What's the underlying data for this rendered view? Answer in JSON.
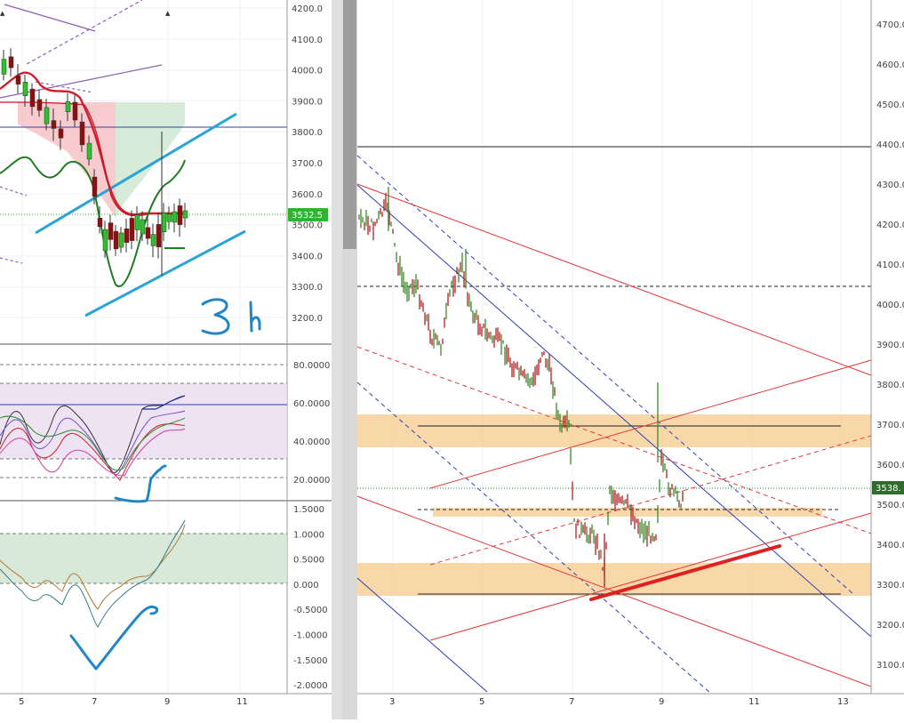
{
  "left_panel": {
    "price_axis": [
      "4200.0",
      "4100.0",
      "4000.0",
      "3900.0",
      "3800.0",
      "3700.0",
      "3600.0",
      "3500.0",
      "3400.0",
      "3300.0",
      "3200.0"
    ],
    "last_price": "3532.5",
    "stoch_axis": [
      "80.0000",
      "60.0000",
      "40.0000",
      "20.0000"
    ],
    "osc_axis": [
      "1.5000",
      "1.0000",
      "0.5000",
      "0.000",
      "-0.5000",
      "-1.0000",
      "-1.5000",
      "-2.0000"
    ],
    "time_axis": [
      "5",
      "7",
      "9",
      "11"
    ],
    "annotation": "3h"
  },
  "right_panel": {
    "price_axis": [
      "4700.0",
      "4600.0",
      "4500.0",
      "4400.0",
      "4300.0",
      "4200.0",
      "4100.0",
      "4000.0",
      "3900.0",
      "3800.0",
      "3700.0",
      "3600.0",
      "3500.0",
      "3400.0",
      "3300.0",
      "3200.0",
      "3100.0"
    ],
    "last_price": "3538.",
    "time_axis": [
      "3",
      "5",
      "7",
      "9",
      "11",
      "13"
    ]
  },
  "colors": {
    "bull": "#2fbf2f",
    "bear": "#8b1010",
    "channel": "#2aa3d8",
    "tag": "#2db52d",
    "zone": "#f6c98c"
  }
}
